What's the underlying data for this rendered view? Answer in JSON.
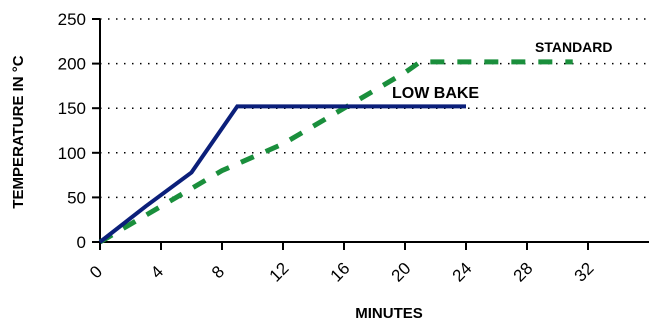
{
  "chart_data": {
    "type": "line",
    "xlabel": "MINUTES",
    "ylabel": "TEMPERATURE IN °C",
    "xlim": [
      0,
      36
    ],
    "ylim": [
      0,
      250
    ],
    "x_ticks": [
      0,
      4,
      8,
      12,
      16,
      20,
      24,
      28,
      32
    ],
    "y_ticks": [
      0,
      50,
      100,
      150,
      200,
      250
    ],
    "grid": "horizontal dotted",
    "series": [
      {
        "name": "LOW BAKE",
        "color": "#0b1f7a",
        "style": "solid",
        "x": [
          0,
          3,
          6,
          9,
          15,
          24
        ],
        "y": [
          0,
          40,
          78,
          152,
          152,
          152
        ]
      },
      {
        "name": "STANDARD",
        "color": "#1a8f3c",
        "style": "dashed",
        "x": [
          0,
          8,
          12,
          16,
          20,
          21,
          31
        ],
        "y": [
          0,
          80,
          110,
          150,
          190,
          202,
          202
        ]
      }
    ]
  }
}
